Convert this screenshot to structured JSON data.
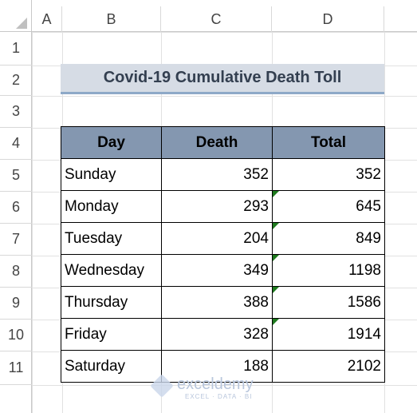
{
  "sheet": {
    "columns": [
      "A",
      "B",
      "C",
      "D"
    ],
    "rows": [
      "1",
      "2",
      "3",
      "4",
      "5",
      "6",
      "7",
      "8",
      "9",
      "10",
      "11"
    ]
  },
  "title": "Covid-19 Cumulative Death Toll",
  "table": {
    "header": [
      "Day",
      "Death",
      "Total"
    ],
    "rows": [
      [
        "Sunday",
        352,
        352
      ],
      [
        "Monday",
        293,
        645
      ],
      [
        "Tuesday",
        204,
        849
      ],
      [
        "Wednesday",
        349,
        1198
      ],
      [
        "Thursday",
        388,
        1586
      ],
      [
        "Friday",
        328,
        1914
      ],
      [
        "Saturday",
        188,
        2102
      ]
    ]
  },
  "watermark": {
    "name": "exceldemy",
    "tagline": "EXCEL · DATA · BI"
  }
}
